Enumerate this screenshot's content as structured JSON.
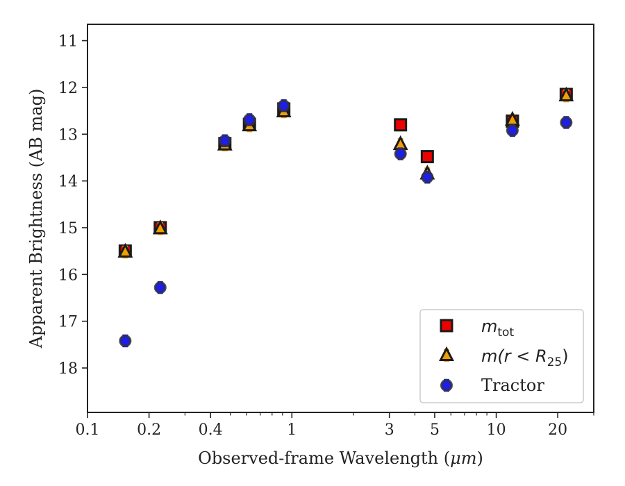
{
  "chart_data": {
    "type": "scatter",
    "xlabel_prefix": "Observed-frame Wavelength (",
    "xlabel_unit": "μm",
    "xlabel_suffix": ")",
    "ylabel": "Apparent Brightness (AB mag)",
    "x_scale": "log",
    "xlim": [
      0.1,
      30
    ],
    "ylim": [
      18.95,
      10.65
    ],
    "y_inverted": true,
    "grid": false,
    "legend_position": "lower-right",
    "x_ticks": [
      {
        "value": 0.1,
        "label": "0.1"
      },
      {
        "value": 0.2,
        "label": "0.2"
      },
      {
        "value": 0.4,
        "label": "0.4"
      },
      {
        "value": 1,
        "label": "1"
      },
      {
        "value": 3,
        "label": "3"
      },
      {
        "value": 5,
        "label": "5"
      },
      {
        "value": 10,
        "label": "10"
      },
      {
        "value": 20,
        "label": "20"
      }
    ],
    "x_minor_ticks": [
      0.3,
      0.5,
      0.6,
      0.7,
      0.8,
      0.9,
      2,
      4,
      6,
      7,
      8,
      9,
      30
    ],
    "y_ticks": [
      {
        "value": 11,
        "label": "11"
      },
      {
        "value": 12,
        "label": "12"
      },
      {
        "value": 13,
        "label": "13"
      },
      {
        "value": 14,
        "label": "14"
      },
      {
        "value": 15,
        "label": "15"
      },
      {
        "value": 16,
        "label": "16"
      },
      {
        "value": 17,
        "label": "17"
      },
      {
        "value": 18,
        "label": "18"
      }
    ],
    "series": [
      {
        "name": "m_tot",
        "legend_label": {
          "base": "m",
          "sub": "tot"
        },
        "marker": "square",
        "fill": "#ee0000",
        "edge": "#1a1a1a",
        "errcolor": "#cc0000",
        "points": [
          {
            "x": 0.153,
            "y": 15.5
          },
          {
            "x": 0.227,
            "y": 15.0
          },
          {
            "x": 0.47,
            "y": 13.2
          },
          {
            "x": 0.62,
            "y": 12.79
          },
          {
            "x": 0.913,
            "y": 12.46
          },
          {
            "x": 3.4,
            "y": 12.8
          },
          {
            "x": 4.6,
            "y": 13.48
          },
          {
            "x": 12.0,
            "y": 12.72
          },
          {
            "x": 22.0,
            "y": 12.15
          }
        ]
      },
      {
        "name": "m(r < R25)",
        "legend_label": {
          "base": "m(r < R",
          "sub": "25",
          "tail": ")"
        },
        "marker": "triangle",
        "fill": "#f0a000",
        "edge": "#1a1a1a",
        "errcolor": "#f0a000",
        "points": [
          {
            "x": 0.153,
            "y": 15.52
          },
          {
            "x": 0.227,
            "y": 15.02
          },
          {
            "x": 0.47,
            "y": 13.23
          },
          {
            "x": 0.62,
            "y": 12.82
          },
          {
            "x": 0.913,
            "y": 12.52
          },
          {
            "x": 3.4,
            "y": 13.22
          },
          {
            "x": 4.6,
            "y": 13.85
          },
          {
            "x": 12.0,
            "y": 12.7
          },
          {
            "x": 22.0,
            "y": 12.18
          }
        ]
      },
      {
        "name": "Tractor",
        "legend_label": {
          "base": "Tractor"
        },
        "marker": "circle",
        "fill": "#1e1ee6",
        "edge": "#333333",
        "errcolor": "#2222ee",
        "points": [
          {
            "x": 0.153,
            "y": 17.42
          },
          {
            "x": 0.227,
            "y": 16.28
          },
          {
            "x": 0.47,
            "y": 13.14
          },
          {
            "x": 0.62,
            "y": 12.69
          },
          {
            "x": 0.913,
            "y": 12.39
          },
          {
            "x": 3.4,
            "y": 13.42
          },
          {
            "x": 4.6,
            "y": 13.92
          },
          {
            "x": 12.0,
            "y": 12.92
          },
          {
            "x": 22.0,
            "y": 12.75
          }
        ]
      }
    ]
  }
}
